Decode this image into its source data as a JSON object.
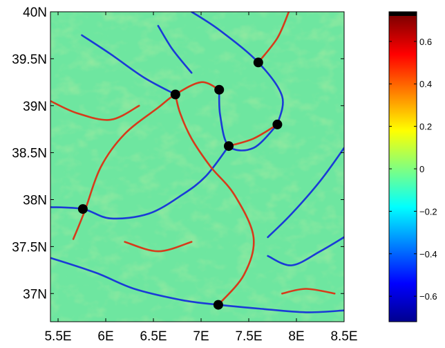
{
  "map": {
    "lon_range": [
      5.42,
      8.5
    ],
    "lat_range": [
      36.7,
      40
    ],
    "x_ticks": [
      {
        "lon": 5.5,
        "label": "5.5E"
      },
      {
        "lon": 6.0,
        "label": "6E"
      },
      {
        "lon": 6.5,
        "label": "6.5E"
      },
      {
        "lon": 7.0,
        "label": "7E"
      },
      {
        "lon": 7.5,
        "label": "7.5E"
      },
      {
        "lon": 8.0,
        "label": "8E"
      },
      {
        "lon": 8.5,
        "label": "8.5E"
      }
    ],
    "y_ticks": [
      {
        "lat": 40.0,
        "label": "40N"
      },
      {
        "lat": 39.5,
        "label": "39.5N"
      },
      {
        "lat": 39.0,
        "label": "39N"
      },
      {
        "lat": 38.5,
        "label": "38.5N"
      },
      {
        "lat": 38.0,
        "label": "38N"
      },
      {
        "lat": 37.5,
        "label": "37.5N"
      },
      {
        "lat": 37.0,
        "label": "37N"
      }
    ],
    "background_color": "#6ee6a0",
    "markers": [
      {
        "lon": 5.76,
        "lat": 37.9
      },
      {
        "lon": 6.73,
        "lat": 39.12
      },
      {
        "lon": 7.19,
        "lat": 39.17
      },
      {
        "lon": 7.6,
        "lat": 39.46
      },
      {
        "lon": 7.8,
        "lat": 38.8
      },
      {
        "lon": 7.29,
        "lat": 38.57
      },
      {
        "lon": 7.18,
        "lat": 36.88
      }
    ],
    "ridges": [
      {
        "color": "#d73a1a",
        "points": [
          [
            5.66,
            37.58
          ],
          [
            5.78,
            37.88
          ],
          [
            5.95,
            38.35
          ],
          [
            6.2,
            38.7
          ],
          [
            6.55,
            38.98
          ],
          [
            6.73,
            39.12
          ],
          [
            7.0,
            39.25
          ],
          [
            7.19,
            39.17
          ]
        ]
      },
      {
        "color": "#1a3ad7",
        "points": [
          [
            5.42,
            37.92
          ],
          [
            5.76,
            37.9
          ],
          [
            6.05,
            37.8
          ],
          [
            6.45,
            37.85
          ],
          [
            6.8,
            38.05
          ],
          [
            7.05,
            38.25
          ],
          [
            7.29,
            38.57
          ]
        ]
      },
      {
        "color": "#d73a1a",
        "points": [
          [
            6.73,
            39.12
          ],
          [
            6.78,
            38.92
          ],
          [
            6.9,
            38.65
          ],
          [
            7.1,
            38.35
          ],
          [
            7.35,
            38.05
          ],
          [
            7.55,
            37.6
          ],
          [
            7.45,
            37.2
          ],
          [
            7.18,
            36.88
          ]
        ]
      },
      {
        "color": "#1a3ad7",
        "points": [
          [
            5.42,
            37.38
          ],
          [
            5.9,
            37.22
          ],
          [
            6.3,
            37.05
          ],
          [
            6.8,
            36.93
          ],
          [
            7.18,
            36.88
          ],
          [
            7.6,
            36.84
          ],
          [
            8.1,
            36.8
          ],
          [
            8.5,
            36.82
          ]
        ]
      },
      {
        "color": "#1a3ad7",
        "points": [
          [
            7.19,
            39.17
          ],
          [
            7.2,
            38.9
          ],
          [
            7.29,
            38.57
          ],
          [
            7.55,
            38.55
          ],
          [
            7.8,
            38.8
          ]
        ]
      },
      {
        "color": "#d73a1a",
        "points": [
          [
            7.29,
            38.57
          ],
          [
            7.55,
            38.65
          ],
          [
            7.8,
            38.8
          ]
        ]
      },
      {
        "color": "#1a3ad7",
        "points": [
          [
            7.8,
            38.8
          ],
          [
            7.85,
            39.1
          ],
          [
            7.6,
            39.46
          ],
          [
            7.2,
            39.8
          ],
          [
            6.9,
            40.0
          ]
        ]
      },
      {
        "color": "#d73a1a",
        "points": [
          [
            7.6,
            39.46
          ],
          [
            7.8,
            39.72
          ],
          [
            7.92,
            40.0
          ]
        ]
      },
      {
        "color": "#1a3ad7",
        "points": [
          [
            6.73,
            39.12
          ],
          [
            6.4,
            39.3
          ],
          [
            6.05,
            39.55
          ],
          [
            5.75,
            39.75
          ]
        ]
      },
      {
        "color": "#d73a1a",
        "points": [
          [
            5.42,
            39.05
          ],
          [
            5.7,
            38.92
          ],
          [
            6.05,
            38.85
          ],
          [
            6.35,
            39.0
          ]
        ]
      },
      {
        "color": "#1a3ad7",
        "points": [
          [
            8.5,
            38.55
          ],
          [
            8.25,
            38.2
          ],
          [
            7.95,
            37.85
          ],
          [
            7.7,
            37.6
          ]
        ]
      },
      {
        "color": "#1a3ad7",
        "points": [
          [
            7.7,
            37.4
          ],
          [
            7.95,
            37.3
          ],
          [
            8.25,
            37.45
          ],
          [
            8.5,
            37.6
          ]
        ]
      },
      {
        "color": "#d73a1a",
        "points": [
          [
            7.85,
            37.0
          ],
          [
            8.1,
            37.05
          ],
          [
            8.4,
            37.0
          ]
        ]
      },
      {
        "color": "#1a3ad7",
        "points": [
          [
            6.55,
            39.85
          ],
          [
            6.7,
            39.6
          ],
          [
            6.9,
            39.35
          ]
        ]
      },
      {
        "color": "#d73a1a",
        "points": [
          [
            6.2,
            37.55
          ],
          [
            6.55,
            37.45
          ],
          [
            6.9,
            37.55
          ]
        ]
      }
    ]
  },
  "colorbar": {
    "range": [
      -0.72,
      0.72
    ],
    "stops": [
      "#00008f",
      "#0000ff",
      "#0080ff",
      "#00ffff",
      "#80ff80",
      "#ffff00",
      "#ff8000",
      "#ff0000",
      "#800000"
    ],
    "cap_color": "#000000",
    "ticks": [
      {
        "value": 0.6,
        "label": "0.6"
      },
      {
        "value": 0.4,
        "label": "0.4"
      },
      {
        "value": 0.2,
        "label": "0.2"
      },
      {
        "value": 0.0,
        "label": "0"
      },
      {
        "value": -0.2,
        "label": "−0.2"
      },
      {
        "value": -0.4,
        "label": "−0.4"
      },
      {
        "value": -0.6,
        "label": "−0.6"
      }
    ]
  }
}
